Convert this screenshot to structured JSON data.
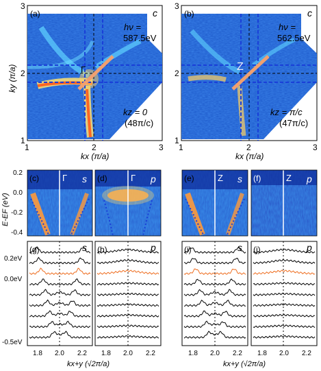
{
  "panels": {
    "a": {
      "label": "(a)",
      "pol": "c",
      "hv": "hν =",
      "energy": "587.5eV",
      "point": "Γ",
      "kz_line1": "kz = 0",
      "kz_line2": "(48π/c)"
    },
    "b": {
      "label": "(b)",
      "pol": "c",
      "hv": "hν =",
      "energy": "562.5eV",
      "point": "Z",
      "kz_line1": "kz = π/c",
      "kz_line2": "(47π/c)"
    },
    "c": {
      "label": "(c)",
      "point": "Γ",
      "pol": "s"
    },
    "d": {
      "label": "(d)",
      "point": "Γ",
      "pol": "p"
    },
    "e": {
      "label": "(e)",
      "point": "Z",
      "pol": "s"
    },
    "f": {
      "label": "(f)",
      "point": "Z",
      "pol": "p"
    },
    "g": {
      "label": "(g)",
      "pol": "s"
    },
    "h": {
      "label": "(h)",
      "pol": "p"
    },
    "i": {
      "label": "(i)",
      "pol": "s"
    },
    "j": {
      "label": "(j)",
      "pol": "p"
    }
  },
  "axes": {
    "map_y_label": "ky (π/a)",
    "map_x_label": "kx (π/a)",
    "map_ticks": [
      "1",
      "2",
      "3"
    ],
    "e_label": "E-EF (eV)",
    "e_ticks": [
      "0.2",
      "0.0",
      "-0.2",
      "-0.4"
    ],
    "edc_x_label": "kx+y (√2π/a)",
    "edc_x_ticks": [
      "1.8",
      "2.0",
      "2.2"
    ],
    "edc_y_ticks": [
      "0.2eV",
      "0.0eV",
      "-0.5eV"
    ]
  },
  "colors": {
    "map_bg": "#1b56c8",
    "highlight_curve": "#ee6d1f",
    "cut_line": "#f0a070",
    "grid_dashes": "#1a3fd8"
  }
}
